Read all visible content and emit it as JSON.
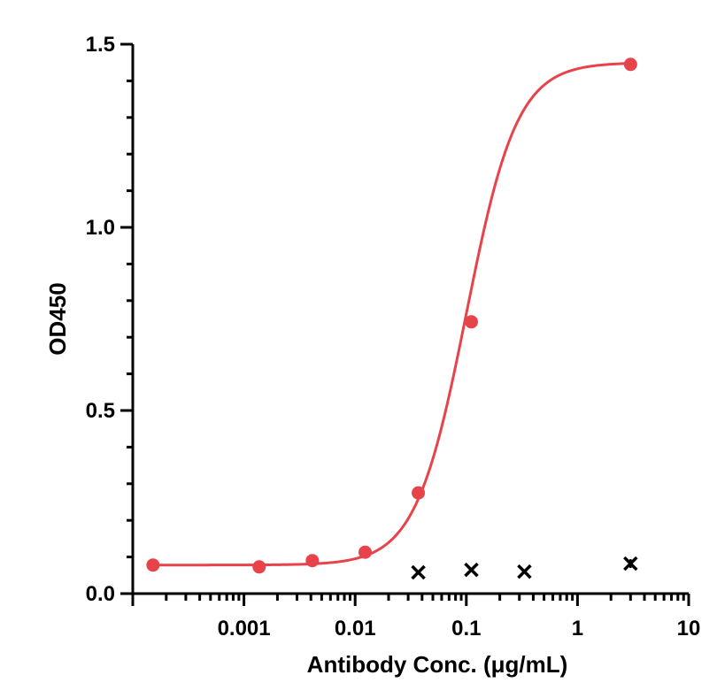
{
  "chart_data": {
    "type": "scatter",
    "xlabel": "Antibody Conc. (μg/mL)",
    "ylabel": "OD450",
    "x_scale": "log",
    "xlim": [
      0.0001,
      10
    ],
    "ylim": [
      0,
      1.5
    ],
    "x_ticks": [
      {
        "value": 0.001,
        "label": "0.001"
      },
      {
        "value": 0.01,
        "label": "0.01"
      },
      {
        "value": 0.1,
        "label": "0.1"
      },
      {
        "value": 1,
        "label": "1"
      },
      {
        "value": 10,
        "label": "10"
      }
    ],
    "y_ticks": [
      {
        "value": 0,
        "label": "0.0"
      },
      {
        "value": 0.5,
        "label": "0.5"
      },
      {
        "value": 1.0,
        "label": "1.0"
      },
      {
        "value": 1.5,
        "label": "1.5"
      }
    ],
    "y_minor_step": 0.1,
    "series": [
      {
        "marker": "circle",
        "color": "#E8434A",
        "fit": "four-parameter logistic",
        "x": [
          0.000152,
          0.00137,
          0.00412,
          0.0123,
          0.037,
          0.111,
          3.0
        ],
        "y": [
          0.078,
          0.073,
          0.09,
          0.113,
          0.275,
          0.742,
          1.445
        ]
      },
      {
        "marker": "cross",
        "color": "#000000",
        "x": [
          0.037,
          0.111,
          0.333,
          3.0
        ],
        "y": [
          0.058,
          0.065,
          0.06,
          0.082
        ],
        "yerr": [
          0.005,
          0.005,
          0.005,
          0.012
        ]
      }
    ],
    "grid": false,
    "legend": "none"
  }
}
